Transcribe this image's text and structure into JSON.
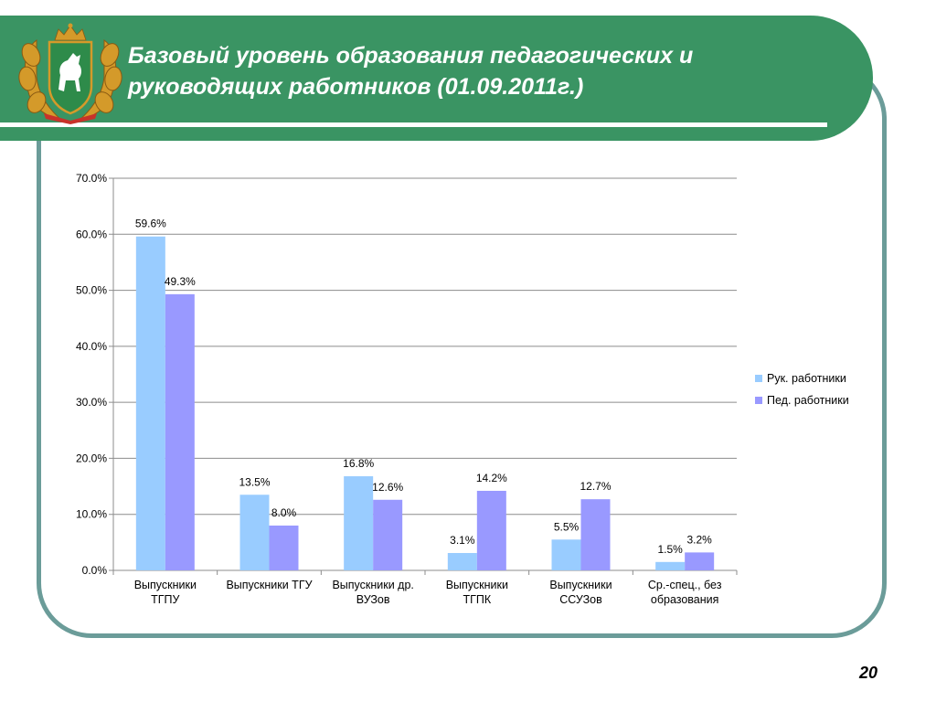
{
  "slide": {
    "title": "Базовый уровень образования педагогических и руководящих работников (01.09.2011г.)",
    "page_number": "20",
    "emblem": "tomsk-coat-of-arms",
    "colors": {
      "banner": "#3a9463",
      "frame": "#6b9c99"
    }
  },
  "chart_data": {
    "type": "bar",
    "categories": [
      [
        "Выпускники",
        "ТГПУ"
      ],
      [
        "Выпускники ТГУ"
      ],
      [
        "Выпускники др.",
        "ВУЗов"
      ],
      [
        "Выпускники",
        "ТГПК"
      ],
      [
        "Выпускники",
        "ССУЗов"
      ],
      [
        "Ср.-спец., без",
        "образования"
      ]
    ],
    "series": [
      {
        "name": "Рук. работники",
        "color": "#99ccff",
        "values": [
          59.6,
          13.5,
          16.8,
          3.1,
          5.5,
          1.5
        ],
        "labels": [
          "59.6%",
          "13.5%",
          "16.8%",
          "3.1%",
          "5.5%",
          "1.5%"
        ]
      },
      {
        "name": "Пед. работники",
        "color": "#9999ff",
        "values": [
          49.3,
          8.0,
          12.6,
          14.2,
          12.7,
          3.2
        ],
        "labels": [
          "49.3%",
          "8.0%",
          "12.6%",
          "14.2%",
          "12.7%",
          "3.2%"
        ]
      }
    ],
    "y_ticks": [
      "0.0%",
      "10.0%",
      "20.0%",
      "30.0%",
      "40.0%",
      "50.0%",
      "60.0%",
      "70.0%"
    ],
    "ylim": [
      0,
      70
    ],
    "grid": true,
    "legend_position": "right"
  }
}
